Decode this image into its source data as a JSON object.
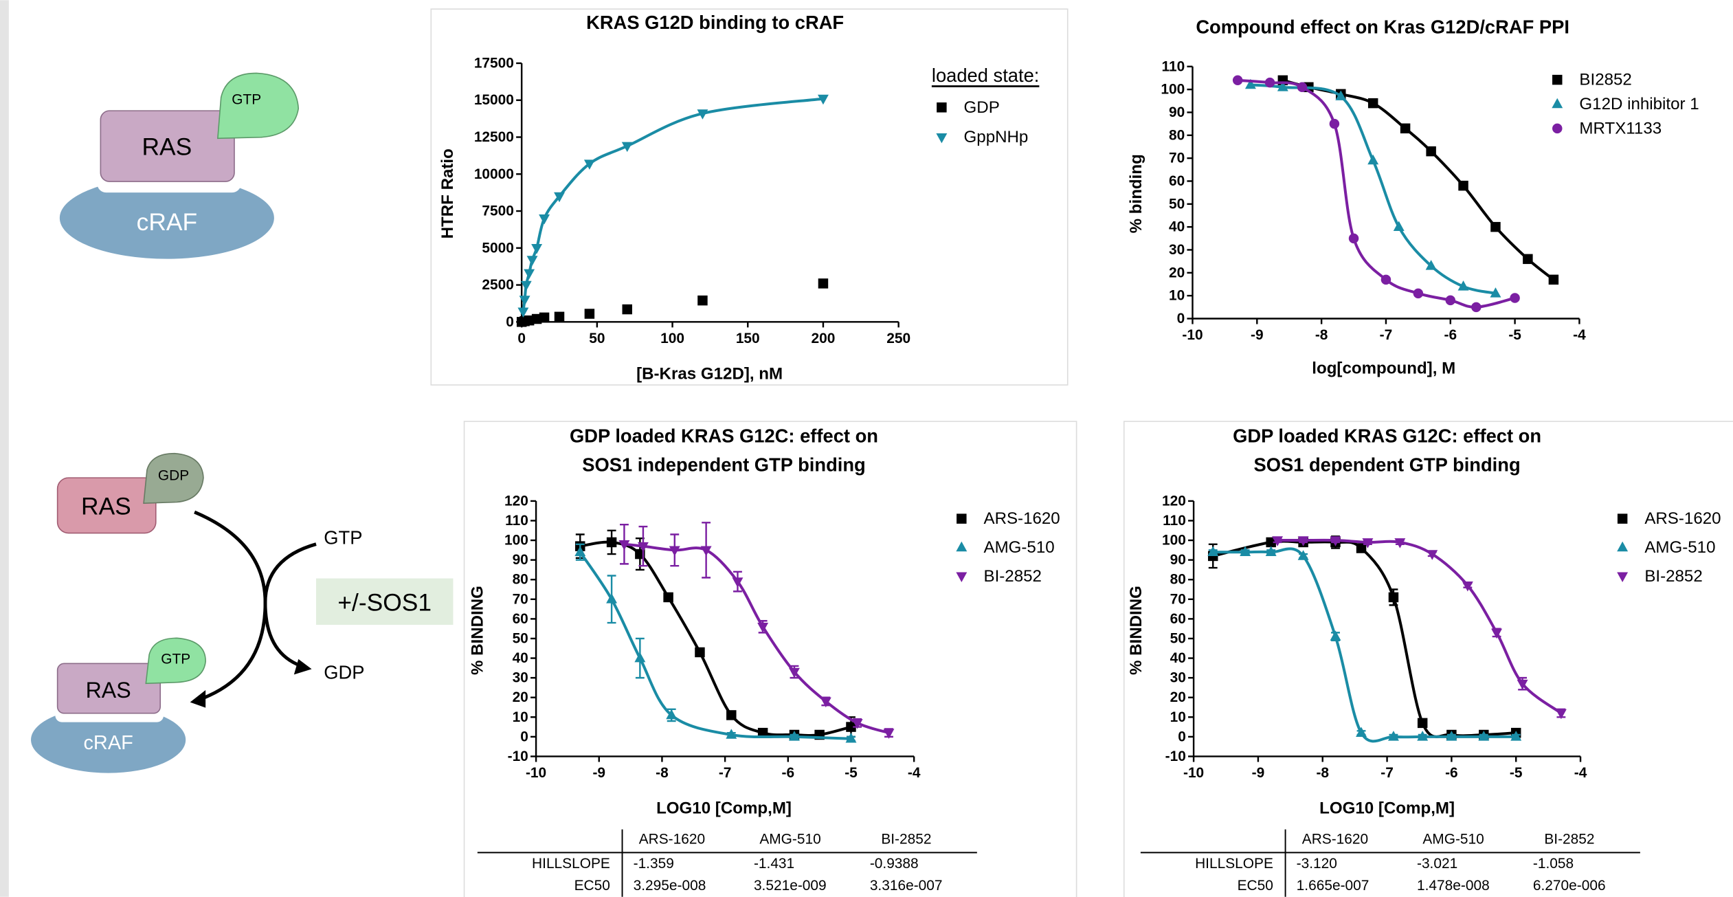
{
  "chart_data": [
    {
      "type": "scatter",
      "title": [
        "KRAS G12D binding to cRAF"
      ],
      "x_label": "[B-Kras G12D], nM",
      "y_label": "HTRF Ratio",
      "xlim": [
        0,
        250
      ],
      "xticks": [
        0,
        50,
        100,
        150,
        200,
        250
      ],
      "ylim": [
        0,
        17500
      ],
      "yticks": [
        0,
        2500,
        5000,
        7500,
        10000,
        12500,
        15000,
        17500
      ],
      "legend_title": "loaded state:",
      "series": [
        {
          "name": "GDP",
          "color": "#000000",
          "marker": "square",
          "curve": false,
          "x": [
            0,
            2,
            5,
            10,
            15,
            25,
            45,
            70,
            120,
            200
          ],
          "values": [
            0,
            50,
            100,
            200,
            300,
            350,
            550,
            850,
            1450,
            2600
          ]
        },
        {
          "name": "GppNHp",
          "color": "#1a8ca5",
          "marker": "triangle-down",
          "curve": true,
          "x": [
            1,
            2,
            3,
            5,
            7,
            10,
            15,
            25,
            45,
            70,
            120,
            200
          ],
          "values": [
            700,
            1500,
            2500,
            3300,
            4200,
            5000,
            7000,
            8500,
            10700,
            11900,
            14100,
            15100
          ]
        }
      ]
    },
    {
      "type": "scatter",
      "title": [
        "Compound effect on Kras G12D/cRAF PPI"
      ],
      "x_label": "log[compound], M",
      "y_label": "% binding",
      "xlim": [
        -10,
        -4
      ],
      "xticks": [
        -10,
        -9,
        -8,
        -7,
        -6,
        -5,
        -4
      ],
      "ylim": [
        0,
        110
      ],
      "yticks": [
        0,
        10,
        20,
        30,
        40,
        50,
        60,
        70,
        80,
        90,
        100,
        110
      ],
      "series": [
        {
          "name": "BI2852",
          "color": "#000000",
          "marker": "square",
          "curve": true,
          "x": [
            -8.6,
            -8.2,
            -7.7,
            -7.2,
            -6.7,
            -6.3,
            -5.8,
            -5.3,
            -4.8,
            -4.4
          ],
          "values": [
            104,
            101,
            98,
            94,
            83,
            73,
            58,
            40,
            26,
            17
          ]
        },
        {
          "name": "G12D inhibitor 1",
          "color": "#1a8ca5",
          "marker": "triangle-up",
          "curve": true,
          "x": [
            -9.1,
            -8.6,
            -7.7,
            -7.2,
            -6.8,
            -6.3,
            -5.8,
            -5.3
          ],
          "values": [
            102,
            101,
            97,
            69,
            40,
            23,
            14,
            11
          ]
        },
        {
          "name": "MRTX1133",
          "color": "#7b1fa2",
          "marker": "circle",
          "curve": true,
          "x": [
            -9.3,
            -8.8,
            -8.3,
            -7.8,
            -7.5,
            -7.0,
            -6.5,
            -6.0,
            -5.6,
            -5.0
          ],
          "values": [
            104,
            103,
            101,
            85,
            35,
            17,
            11,
            8,
            5,
            9
          ]
        }
      ]
    },
    {
      "type": "scatter",
      "title": [
        "GDP loaded KRAS G12C: effect on",
        "SOS1 independent GTP binding"
      ],
      "x_label": "LOG10 [Comp,M]",
      "y_label": "% BINDING",
      "xlim": [
        -10,
        -4
      ],
      "xticks": [
        -10,
        -9,
        -8,
        -7,
        -6,
        -5,
        -4
      ],
      "ylim": [
        -10,
        120
      ],
      "yticks": [
        -10,
        0,
        10,
        20,
        30,
        40,
        50,
        60,
        70,
        80,
        90,
        100,
        110,
        120
      ],
      "series": [
        {
          "name": "ARS-1620",
          "color": "#000000",
          "marker": "square",
          "curve": true,
          "x": [
            -9.3,
            -8.8,
            -8.35,
            -7.9,
            -7.4,
            -6.9,
            -6.4,
            -5.9,
            -5.5,
            -5.0
          ],
          "values": [
            97,
            99,
            93,
            71,
            43,
            11,
            2,
            1,
            1,
            5
          ],
          "errors": [
            6,
            6,
            8,
            1,
            1,
            1,
            1,
            1,
            1,
            5
          ]
        },
        {
          "name": "AMG-510",
          "color": "#1a8ca5",
          "marker": "triangle-up",
          "curve": true,
          "x": [
            -9.3,
            -8.8,
            -8.35,
            -7.85,
            -6.9,
            -5.9,
            -5.0
          ],
          "values": [
            94,
            70,
            40,
            11,
            1,
            0,
            -1
          ],
          "errors": [
            4,
            12,
            10,
            3,
            1,
            1,
            1
          ]
        },
        {
          "name": "BI-2852",
          "color": "#7b1fa2",
          "marker": "triangle-down",
          "curve": true,
          "x": [
            -8.6,
            -8.3,
            -7.8,
            -7.3,
            -6.8,
            -6.4,
            -5.9,
            -5.4,
            -4.9,
            -4.4
          ],
          "values": [
            98,
            97,
            95,
            95,
            79,
            56,
            33,
            18,
            7,
            2
          ],
          "errors": [
            10,
            10,
            8,
            14,
            5,
            3,
            3,
            2,
            2,
            2
          ]
        }
      ]
    },
    {
      "type": "scatter",
      "title": [
        "GDP loaded KRAS G12C: effect on",
        "SOS1 dependent GTP binding"
      ],
      "x_label": "LOG10 [Comp,M]",
      "y_label": "% BINDING",
      "xlim": [
        -10,
        -4
      ],
      "xticks": [
        -10,
        -9,
        -8,
        -7,
        -6,
        -5,
        -4
      ],
      "ylim": [
        -10,
        120
      ],
      "yticks": [
        -10,
        0,
        10,
        20,
        30,
        40,
        50,
        60,
        70,
        80,
        90,
        100,
        110,
        120
      ],
      "series": [
        {
          "name": "ARS-1620",
          "color": "#000000",
          "marker": "square",
          "curve": true,
          "x": [
            -9.7,
            -8.8,
            -8.3,
            -7.8,
            -7.4,
            -6.9,
            -6.45,
            -6.0,
            -5.5,
            -5.0
          ],
          "values": [
            92,
            99,
            99,
            99,
            96,
            71,
            7,
            1,
            1,
            2
          ],
          "errors": [
            6,
            2,
            2,
            3,
            1,
            4,
            1,
            1,
            1,
            1
          ]
        },
        {
          "name": "AMG-510",
          "color": "#1a8ca5",
          "marker": "triangle-up",
          "curve": true,
          "x": [
            -9.7,
            -9.2,
            -8.8,
            -8.3,
            -7.8,
            -7.4,
            -6.9,
            -6.45,
            -6.0,
            -5.5,
            -5.0
          ],
          "values": [
            94,
            94,
            94,
            92,
            51,
            2,
            0,
            0,
            0,
            0,
            0
          ],
          "errors": [
            1,
            1,
            1,
            1,
            2,
            1,
            1,
            1,
            1,
            1,
            1
          ]
        },
        {
          "name": "BI-2852",
          "color": "#7b1fa2",
          "marker": "triangle-down",
          "curve": true,
          "x": [
            -8.7,
            -8.3,
            -7.8,
            -7.3,
            -6.8,
            -6.3,
            -5.75,
            -5.3,
            -4.9,
            -4.3
          ],
          "values": [
            100,
            100,
            100,
            99,
            99,
            93,
            77,
            53,
            27,
            12
          ],
          "errors": [
            1,
            1,
            1,
            1,
            1,
            1,
            1,
            2,
            3,
            2
          ]
        }
      ]
    }
  ],
  "diagrams": {
    "top": {
      "ras": "RAS",
      "gtp": "GTP",
      "craf": "cRAF"
    },
    "bottom": {
      "ras_gdp": "RAS",
      "gdp_tag": "GDP",
      "gtp_in": "GTP",
      "sos1": "+/-SOS1",
      "gdp_out": "GDP",
      "ras_gtp": "RAS",
      "gtp_tag": "GTP",
      "craf": "cRAF"
    }
  },
  "tables": [
    {
      "header": [
        "ARS-1620",
        "AMG-510",
        "BI-2852"
      ],
      "rows": [
        [
          "HILLSLOPE",
          "-1.359",
          "-1.431",
          "-0.9388"
        ],
        [
          "EC50",
          "3.295e-008",
          "3.521e-009",
          "3.316e-007"
        ]
      ]
    },
    {
      "header": [
        "ARS-1620",
        "AMG-510",
        "BI-2852"
      ],
      "rows": [
        [
          "HILLSLOPE",
          "-3.120",
          "-3.021",
          "-1.058"
        ],
        [
          "EC50",
          "1.665e-007",
          "1.478e-008",
          "6.270e-006"
        ]
      ]
    }
  ]
}
